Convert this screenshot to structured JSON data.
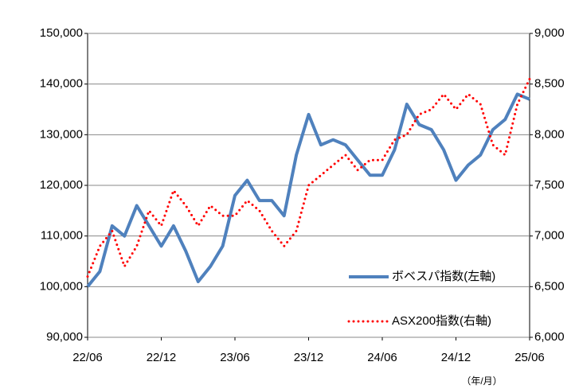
{
  "chart_data": {
    "type": "line",
    "x_note": "（年/月）",
    "categories": [
      "22/06",
      null,
      null,
      null,
      null,
      null,
      "22/12",
      null,
      null,
      null,
      null,
      null,
      "23/06",
      null,
      null,
      null,
      null,
      null,
      "23/12",
      null,
      null,
      null,
      null,
      null,
      "24/06",
      null,
      null,
      null,
      null,
      null,
      "24/12",
      null,
      null,
      null,
      null,
      null,
      "25/06"
    ],
    "series": [
      {
        "name": "ボベスパ指数(左軸)",
        "color": "#4f81bd",
        "style": "solid",
        "axis": "y",
        "values": [
          100000,
          103000,
          112000,
          110000,
          116000,
          112000,
          108000,
          112000,
          107000,
          101000,
          104000,
          108000,
          118000,
          121000,
          117000,
          117000,
          114000,
          126000,
          134000,
          128000,
          129000,
          128000,
          125000,
          122000,
          122000,
          127000,
          136000,
          132000,
          131000,
          127000,
          121000,
          124000,
          126000,
          131000,
          133000,
          138000,
          137000
        ]
      },
      {
        "name": "ASX200指数(右軸)",
        "color": "#ff0000",
        "style": "dotted",
        "axis": "y2",
        "values": [
          6600,
          6900,
          7050,
          6700,
          6900,
          7250,
          7100,
          7450,
          7300,
          7100,
          7300,
          7200,
          7200,
          7350,
          7250,
          7050,
          6900,
          7050,
          7500,
          7600,
          7700,
          7800,
          7650,
          7750,
          7750,
          7950,
          8000,
          8200,
          8250,
          8400,
          8250,
          8400,
          8300,
          7900,
          7800,
          8300,
          8550
        ]
      }
    ],
    "ylim": [
      90000,
      150000
    ],
    "yticks": [
      {
        "value": 90000,
        "label": "90,000"
      },
      {
        "value": 100000,
        "label": "100,000"
      },
      {
        "value": 110000,
        "label": "110,000"
      },
      {
        "value": 120000,
        "label": "120,000"
      },
      {
        "value": 130000,
        "label": "130,000"
      },
      {
        "value": 140000,
        "label": "140,000"
      },
      {
        "value": 150000,
        "label": "150,000"
      }
    ],
    "y2lim": [
      6000,
      9000
    ],
    "y2ticks": [
      {
        "value": 6000,
        "label": "6,000"
      },
      {
        "value": 6500,
        "label": "6,500"
      },
      {
        "value": 7000,
        "label": "7,000"
      },
      {
        "value": 7500,
        "label": "7,500"
      },
      {
        "value": 8000,
        "label": "8,000"
      },
      {
        "value": 8500,
        "label": "8,500"
      },
      {
        "value": 9000,
        "label": "9,000"
      }
    ],
    "grid": true
  }
}
